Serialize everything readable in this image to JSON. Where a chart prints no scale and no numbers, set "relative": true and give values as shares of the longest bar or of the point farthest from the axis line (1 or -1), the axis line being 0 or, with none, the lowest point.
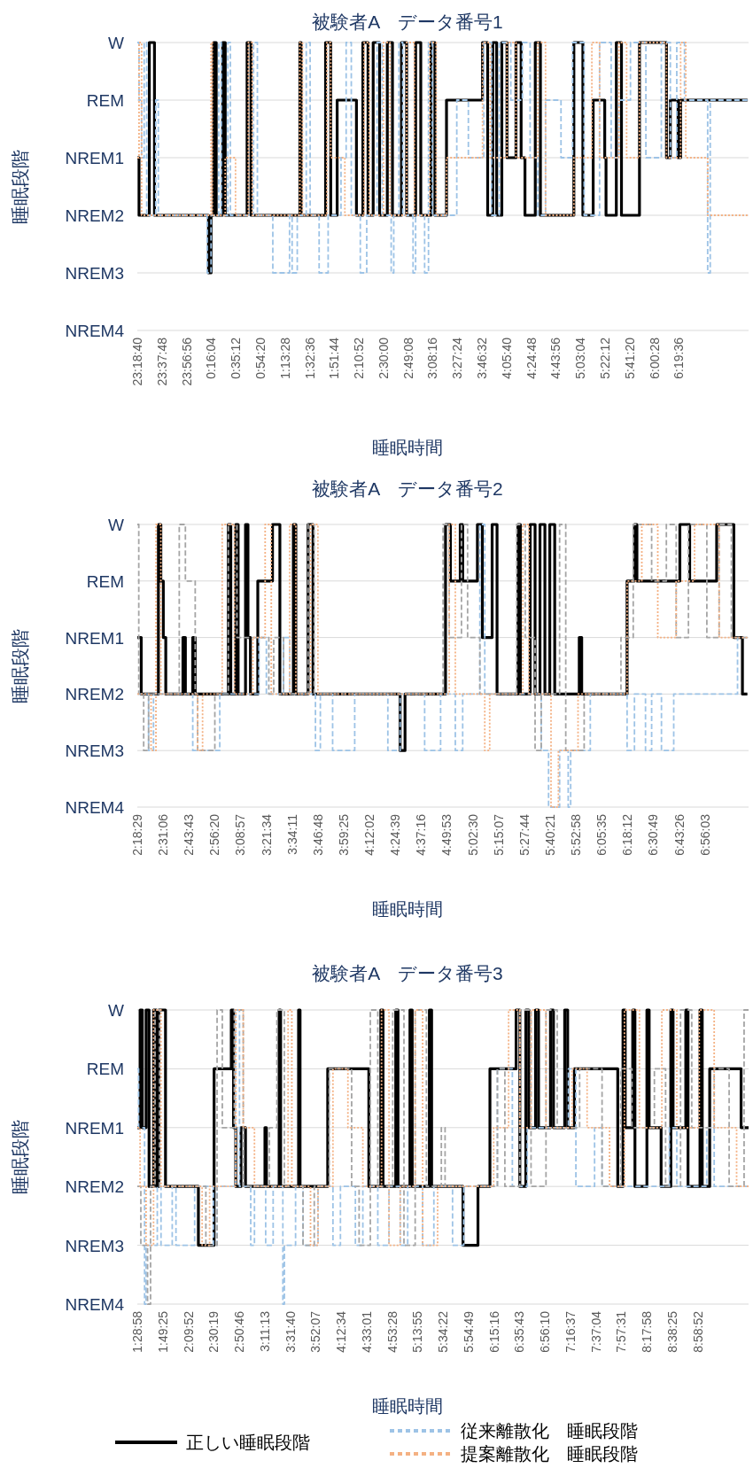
{
  "chart_data": [
    {
      "type": "step",
      "title": "被験者A　データ番号1",
      "xlabel": "睡眠時間",
      "ylabel": "睡眠段階",
      "grid": "y",
      "relative": true,
      "xlim": [
        "2000-01-01T23:18:40",
        "2000-01-02T07:13:48"
      ],
      "y_categories": [
        "W",
        "REM",
        "NREM1",
        "NREM2",
        "NREM3",
        "NREM4"
      ],
      "xticks": [
        {
          "value": "2000-01-01T23:18:40",
          "label": "23:18:40"
        },
        {
          "value": "2000-01-01T23:37:48",
          "label": "23:37:48"
        },
        {
          "value": "2000-01-01T23:56:56",
          "label": "23:56:56"
        },
        {
          "value": "2000-01-02T00:16:04",
          "label": "0:16:04"
        },
        {
          "value": "2000-01-02T00:35:12",
          "label": "0:35:12"
        },
        {
          "value": "2000-01-02T00:54:20",
          "label": "0:54:20"
        },
        {
          "value": "2000-01-02T01:13:28",
          "label": "1:13:28"
        },
        {
          "value": "2000-01-02T01:32:36",
          "label": "1:32:36"
        },
        {
          "value": "2000-01-02T01:51:44",
          "label": "1:51:44"
        },
        {
          "value": "2000-01-02T02:10:52",
          "label": "2:10:52"
        },
        {
          "value": "2000-01-02T02:30:00",
          "label": "2:30:00"
        },
        {
          "value": "2000-01-02T02:49:08",
          "label": "2:49:08"
        },
        {
          "value": "2000-01-02T03:08:16",
          "label": "3:08:16"
        },
        {
          "value": "2000-01-02T03:27:24",
          "label": "3:27:24"
        },
        {
          "value": "2000-01-02T03:46:32",
          "label": "3:46:32"
        },
        {
          "value": "2000-01-02T04:05:40",
          "label": "4:05:40"
        },
        {
          "value": "2000-01-02T04:24:48",
          "label": "4:24:48"
        },
        {
          "value": "2000-01-02T04:43:56",
          "label": "4:43:56"
        },
        {
          "value": "2000-01-02T05:03:04",
          "label": "5:03:04"
        },
        {
          "value": "2000-01-02T05:22:12",
          "label": "5:22:12"
        },
        {
          "value": "2000-01-02T05:41:20",
          "label": "5:41:20"
        },
        {
          "value": "2000-01-02T06:00:28",
          "label": "6:00:28"
        },
        {
          "value": "2000-01-02T06:19:36",
          "label": "6:19:36"
        }
      ],
      "series": [
        {
          "color": "#9dc3e6",
          "line_style": "dashed",
          "x": [
            "2000-01-01T23:18:40",
            "2000-01-01T23:20",
            "2000-01-01T23:22",
            "2000-01-01T23:24",
            "2000-01-01T23:26",
            "2000-01-01T23:33",
            "2000-01-01T23:35",
            "2000-01-02T00:13",
            "2000-01-02T00:16",
            "2000-01-02T00:22",
            "2000-01-02T00:24",
            "2000-01-02T00:29",
            "2000-01-02T00:31",
            "2000-01-02T00:49",
            "2000-01-02T00:52",
            "2000-01-02T01:04",
            "2000-01-02T01:17",
            "2000-01-02T01:19",
            "2000-01-02T01:23",
            "2000-01-02T01:30",
            "2000-01-02T01:33",
            "2000-01-02T01:40",
            "2000-01-02T01:47",
            "2000-01-02T01:57",
            "2000-01-02T02:01",
            "2000-01-02T02:05",
            "2000-01-02T02:12",
            "2000-01-02T02:17",
            "2000-01-02T02:25",
            "2000-01-02T02:29",
            "2000-01-02T02:36",
            "2000-01-02T02:38",
            "2000-01-02T02:42",
            "2000-01-02T02:45",
            "2000-01-02T02:53",
            "2000-01-02T02:55",
            "2000-01-02T03:02",
            "2000-01-02T03:05",
            "2000-01-02T03:08",
            "2000-01-02T03:27",
            "2000-01-02T03:36",
            "2000-01-02T03:48",
            "2000-01-02T03:54",
            "2000-01-02T04:00",
            "2000-01-02T04:09",
            "2000-01-02T04:18",
            "2000-01-02T04:24",
            "2000-01-02T04:30",
            "2000-01-02T04:36",
            "2000-01-02T04:48",
            "2000-01-02T04:57",
            "2000-01-02T05:06",
            "2000-01-02T05:18",
            "2000-01-02T05:27",
            "2000-01-02T05:33",
            "2000-01-02T05:42",
            "2000-01-02T05:54",
            "2000-01-02T06:06",
            "2000-01-02T06:13",
            "2000-01-02T06:18",
            "2000-01-02T06:24",
            "2000-01-02T06:42",
            "2000-01-02T06:44",
            "2000-01-02T07:13"
          ],
          "values": [
            1,
            0.8,
            0.6,
            1,
            0.4,
            0.8,
            0.4,
            0.2,
            0.4,
            1,
            0.4,
            1,
            0.4,
            1,
            0.4,
            0.2,
            0.4,
            0.2,
            0.4,
            1,
            0.4,
            0.2,
            0.4,
            0.6,
            1,
            0.4,
            0.2,
            0.4,
            1,
            0.4,
            0.2,
            0.4,
            1,
            0.4,
            0.2,
            0.4,
            0.2,
            1,
            0.4,
            0.8,
            0.6,
            1,
            0.4,
            1,
            0.8,
            1,
            0.6,
            0.4,
            0.8,
            0.6,
            1,
            0.4,
            1,
            0.6,
            0.8,
            1,
            0.6,
            1,
            0.6,
            1,
            0.8,
            0.2,
            0.8,
            0.8
          ]
        },
        {
          "color": "#f4b183",
          "line_style": "dotted",
          "x": [
            "2000-01-01T23:18:40",
            "2000-01-01T23:20",
            "2000-01-01T23:22",
            "2000-01-02T00:16",
            "2000-01-02T00:17",
            "2000-01-02T00:27",
            "2000-01-02T00:35",
            "2000-01-02T00:45",
            "2000-01-02T00:48",
            "2000-01-02T01:25",
            "2000-01-02T01:27",
            "2000-01-02T01:46",
            "2000-01-02T01:49",
            "2000-01-02T02:00",
            "2000-01-02T02:15",
            "2000-01-02T02:19",
            "2000-01-02T02:30",
            "2000-01-02T02:35",
            "2000-01-02T02:48",
            "2000-01-02T02:54",
            "2000-01-02T03:06",
            "2000-01-02T03:11",
            "2000-01-02T03:19",
            "2000-01-02T03:47",
            "2000-01-02T03:53",
            "2000-01-02T04:06",
            "2000-01-02T04:13",
            "2000-01-02T04:30",
            "2000-01-02T04:36",
            "2000-01-02T04:58",
            "2000-01-02T05:12",
            "2000-01-02T05:18",
            "2000-01-02T05:33",
            "2000-01-02T05:39",
            "2000-01-02T05:49",
            "2000-01-02T06:10",
            "2000-01-02T06:21",
            "2000-01-02T06:25",
            "2000-01-02T06:42",
            "2000-01-02T07:13"
          ],
          "values": [
            0.6,
            1,
            0.4,
            1,
            0.4,
            0.6,
            0.4,
            1,
            0.4,
            1,
            0.4,
            1,
            0.6,
            0.4,
            1,
            0.4,
            1,
            0.4,
            1,
            0.4,
            1,
            0.4,
            0.6,
            1,
            0.6,
            1,
            0.6,
            1,
            0.4,
            0.6,
            1,
            0.6,
            1,
            0.6,
            1,
            0.6,
            1,
            0.6,
            0.4,
            0.4
          ]
        },
        {
          "color": "#000000",
          "line_style": "solid",
          "x": [
            "2000-01-01T23:18:40",
            "2000-01-01T23:20",
            "2000-01-01T23:28",
            "2000-01-01T23:32",
            "2000-01-02T00:14",
            "2000-01-02T00:16",
            "2000-01-02T00:18",
            "2000-01-02T00:20",
            "2000-01-02T00:25",
            "2000-01-02T00:27",
            "2000-01-02T00:44",
            "2000-01-02T00:47",
            "2000-01-02T01:25",
            "2000-01-02T01:26",
            "2000-01-02T01:45",
            "2000-01-02T01:49",
            "2000-01-02T01:54",
            "2000-01-02T02:09",
            "2000-01-02T02:14",
            "2000-01-02T02:18",
            "2000-01-02T02:22",
            "2000-01-02T02:27",
            "2000-01-02T02:33",
            "2000-01-02T02:37",
            "2000-01-02T02:44",
            "2000-01-02T02:48",
            "2000-01-02T02:55",
            "2000-01-02T02:59",
            "2000-01-02T03:07",
            "2000-01-02T03:10",
            "2000-01-02T03:19",
            "2000-01-02T03:47",
            "2000-01-02T03:51",
            "2000-01-02T03:55",
            "2000-01-02T03:58",
            "2000-01-02T04:02",
            "2000-01-02T04:06",
            "2000-01-02T04:13",
            "2000-01-02T04:17",
            "2000-01-02T04:20",
            "2000-01-02T04:28",
            "2000-01-02T04:32",
            "2000-01-02T04:58",
            "2000-01-02T05:05",
            "2000-01-02T05:13",
            "2000-01-02T05:22",
            "2000-01-02T05:23",
            "2000-01-02T05:31",
            "2000-01-02T05:35",
            "2000-01-02T05:49",
            "2000-01-02T06:10",
            "2000-01-02T06:13",
            "2000-01-02T06:19",
            "2000-01-02T06:21",
            "2000-01-02T07:13"
          ],
          "values": [
            0.6,
            0.4,
            1,
            0.4,
            0.2,
            0.4,
            1,
            0.4,
            1,
            0.4,
            1,
            0.4,
            1,
            0.4,
            1,
            0.4,
            0.8,
            0.4,
            1,
            0.4,
            1,
            0.4,
            1,
            0.4,
            1,
            0.4,
            1,
            0.4,
            1,
            0.4,
            0.8,
            1,
            0.4,
            1,
            0.4,
            1,
            0.6,
            1,
            0.6,
            0.4,
            1,
            0.4,
            1,
            0.4,
            0.8,
            0.6,
            0.4,
            1,
            0.4,
            1,
            0.6,
            0.8,
            0.6,
            0.8,
            0.8
          ]
        }
      ]
    },
    {
      "type": "step",
      "title": "被験者A　データ番号2",
      "xlabel": "睡眠時間",
      "ylabel": "睡眠段階",
      "grid": "y",
      "relative": true,
      "xlim": [
        2.3081,
        7.29
      ],
      "y_categories": [
        "W",
        "REM",
        "NREM1",
        "NREM2",
        "NREM3",
        "NREM4"
      ],
      "xticks": [
        {
          "value": 2.3081,
          "label": "2:18:29"
        },
        {
          "value": 2.5183,
          "label": "2:31:06"
        },
        {
          "value": 2.7286,
          "label": "2:43:43"
        },
        {
          "value": 2.9389,
          "label": "2:56:20"
        },
        {
          "value": 3.1492,
          "label": "3:08:57"
        },
        {
          "value": 3.3594,
          "label": "3:21:34"
        },
        {
          "value": 3.5697,
          "label": "3:34:11"
        },
        {
          "value": 3.78,
          "label": "3:46:48"
        },
        {
          "value": 3.9903,
          "label": "3:59:25"
        },
        {
          "value": 4.2006,
          "label": "4:12:02"
        },
        {
          "value": 4.4108,
          "label": "4:24:39"
        },
        {
          "value": 4.6211,
          "label": "4:37:16"
        },
        {
          "value": 4.8314,
          "label": "4:49:53"
        },
        {
          "value": 5.0417,
          "label": "5:02:30"
        },
        {
          "value": 5.2519,
          "label": "5:15:07"
        },
        {
          "value": 5.4622,
          "label": "5:27:44"
        },
        {
          "value": 5.6725,
          "label": "5:40:21"
        },
        {
          "value": 5.8828,
          "label": "5:52:58"
        },
        {
          "value": 6.0931,
          "label": "6:05:35"
        },
        {
          "value": 6.3033,
          "label": "6:18:12"
        },
        {
          "value": 6.5136,
          "label": "6:30:49"
        },
        {
          "value": 6.7239,
          "label": "6:43:26"
        },
        {
          "value": 6.9342,
          "label": "6:56:03"
        }
      ],
      "series": [
        {
          "color": "#9dc3e6",
          "line_style": "dashed",
          "x": [
            2.3081,
            2.4,
            2.44,
            2.76,
            2.98,
            3.3,
            3.36,
            3.5,
            3.55,
            3.76,
            3.8,
            3.9,
            4.08,
            4.35,
            4.45,
            4.65,
            4.78,
            4.9,
            4.96,
            5.1,
            5.14,
            5.6,
            5.66,
            5.75,
            5.82,
            5.84,
            6.0,
            6.3,
            6.36,
            6.45,
            6.5,
            6.58,
            6.68,
            7.2,
            7.28
          ],
          "values": [
            0.4,
            0.2,
            0.4,
            0.2,
            0.4,
            0.6,
            0.4,
            0.6,
            0.4,
            0.2,
            0.4,
            0.2,
            0.4,
            0.2,
            0.4,
            0.2,
            0.4,
            0.2,
            0.4,
            1,
            0.4,
            0.2,
            0,
            0.2,
            0,
            0.2,
            0.4,
            0.2,
            0.4,
            0.2,
            0.4,
            0.2,
            0.4,
            0.6,
            0.6
          ]
        },
        {
          "color": "#f4b183",
          "line_style": "dotted",
          "x": [
            2.3081,
            2.42,
            2.46,
            2.5,
            2.8,
            2.84,
            3.0,
            3.1,
            3.25,
            3.35,
            3.4,
            3.55,
            3.6,
            3.72,
            3.78,
            4.85,
            4.9,
            5.14,
            5.18,
            5.45,
            5.5,
            5.68,
            5.74,
            5.9,
            6.3,
            6.42,
            6.55,
            6.7,
            6.85,
            7.05,
            7.28
          ],
          "values": [
            0.4,
            0.2,
            1,
            0.4,
            0.2,
            0.4,
            1,
            0.4,
            0.6,
            1,
            0.4,
            1,
            0.4,
            1,
            0.4,
            1,
            0.4,
            0.2,
            0.4,
            1,
            0.4,
            0,
            0.2,
            0.4,
            0.8,
            1,
            0.6,
            0.8,
            1,
            0.6,
            0.6
          ]
        },
        {
          "color": "#a5a5a5",
          "line_style": "dashed",
          "x": [
            2.3081,
            2.32,
            2.36,
            2.4,
            2.65,
            2.7,
            2.78,
            2.8,
            2.94,
            3.05,
            3.12,
            3.3,
            3.38,
            3.42,
            3.5,
            3.7,
            3.75,
            4.8,
            4.85,
            4.95,
            5.0,
            5.1,
            5.4,
            5.47,
            5.55,
            5.6,
            5.75,
            5.8,
            5.95,
            6.25,
            6.35,
            6.5,
            6.62,
            6.7,
            6.8,
            6.95,
            7.05,
            7.15,
            7.28
          ],
          "values": [
            1,
            0.4,
            0.2,
            0.4,
            1,
            0.8,
            0.4,
            0.2,
            0.4,
            1,
            0.6,
            0.6,
            0.4,
            0.6,
            0.4,
            1,
            0.4,
            1,
            0.6,
            1,
            0.6,
            0.4,
            1,
            0.6,
            0.2,
            0.4,
            1,
            0.2,
            0.4,
            0.6,
            1,
            0.8,
            1,
            0.6,
            1,
            0.6,
            1,
            0.6,
            0.6
          ]
        },
        {
          "color": "#000000",
          "line_style": "solid",
          "x": [
            2.3081,
            2.34,
            2.48,
            2.5,
            2.52,
            2.54,
            2.68,
            2.7,
            2.76,
            2.78,
            3.05,
            3.07,
            3.11,
            3.13,
            3.19,
            3.21,
            3.23,
            3.29,
            3.41,
            3.47,
            3.58,
            3.6,
            3.7,
            3.74,
            4.45,
            4.49,
            4.82,
            4.86,
            4.94,
            4.96,
            5.08,
            5.12,
            5.2,
            5.24,
            5.41,
            5.43,
            5.51,
            5.55,
            5.59,
            5.63,
            5.67,
            5.71,
            5.91,
            5.93,
            6.3,
            6.36,
            6.38,
            6.73,
            6.81,
            7.03,
            7.17,
            7.24,
            7.28
          ],
          "values": [
            0.6,
            0.4,
            1,
            0.8,
            0.6,
            0.4,
            0.6,
            0.4,
            0.6,
            0.4,
            1,
            0.4,
            1,
            0.4,
            1,
            0.6,
            0.4,
            0.8,
            1,
            0.4,
            1,
            0.4,
            1,
            0.4,
            0.2,
            0.4,
            1,
            0.8,
            1,
            0.8,
            1,
            0.6,
            1,
            0.4,
            1,
            0.4,
            1,
            0.4,
            1,
            0.4,
            1,
            0.4,
            0.6,
            0.4,
            0.8,
            1,
            0.8,
            1,
            0.8,
            1,
            0.6,
            0.4,
            0.4
          ]
        }
      ]
    },
    {
      "type": "step",
      "title": "被験者A　データ番号3",
      "xlabel": "睡眠時間",
      "ylabel": "睡眠段階",
      "grid": "y",
      "legend": "bottom",
      "relative": true,
      "xlim": [
        1.4828,
        9.66
      ],
      "y_categories": [
        "W",
        "REM",
        "NREM1",
        "NREM2",
        "NREM3",
        "NREM4"
      ],
      "xticks": [
        {
          "value": 1.4828,
          "label": "1:28:58"
        },
        {
          "value": 1.8236,
          "label": "1:49:25"
        },
        {
          "value": 2.1644,
          "label": "2:09:52"
        },
        {
          "value": 2.5053,
          "label": "2:30:19"
        },
        {
          "value": 2.8461,
          "label": "2:50:46"
        },
        {
          "value": 3.1869,
          "label": "3:11:13"
        },
        {
          "value": 3.5278,
          "label": "3:31:40"
        },
        {
          "value": 3.8686,
          "label": "3:52:07"
        },
        {
          "value": 4.2094,
          "label": "4:12:34"
        },
        {
          "value": 4.5503,
          "label": "4:33:01"
        },
        {
          "value": 4.8911,
          "label": "4:53:28"
        },
        {
          "value": 5.2319,
          "label": "5:13:55"
        },
        {
          "value": 5.5728,
          "label": "5:34:22"
        },
        {
          "value": 5.9136,
          "label": "5:54:49"
        },
        {
          "value": 6.2544,
          "label": "6:15:16"
        },
        {
          "value": 6.5953,
          "label": "6:35:43"
        },
        {
          "value": 6.9361,
          "label": "6:56:10"
        },
        {
          "value": 7.2769,
          "label": "7:16:37"
        },
        {
          "value": 7.6178,
          "label": "7:37:04"
        },
        {
          "value": 7.9586,
          "label": "7:57:31"
        },
        {
          "value": 8.2994,
          "label": "8:17:58"
        },
        {
          "value": 8.6403,
          "label": "8:38:25"
        },
        {
          "value": 8.9811,
          "label": "8:58:52"
        }
      ],
      "series": [
        {
          "name": "従来離散化　睡眠段階",
          "color": "#9dc3e6",
          "line_style": "dashed",
          "x": [
            1.4828,
            1.5,
            1.58,
            1.6,
            1.75,
            1.8,
            1.95,
            2.0,
            2.25,
            2.5,
            2.55,
            2.8,
            2.85,
            3.0,
            3.05,
            3.2,
            3.3,
            3.43,
            3.45,
            3.6,
            3.7,
            3.9,
            4.1,
            4.2,
            4.4,
            4.5,
            4.7,
            4.85,
            5.0,
            5.1,
            5.3,
            5.45,
            5.7,
            5.85,
            6.3,
            6.5,
            6.7,
            7.25,
            7.35,
            7.6,
            7.7,
            8.6,
            8.7,
            9.1,
            9.2,
            9.66
          ],
          "values": [
            0.8,
            0.6,
            0,
            0.2,
            0.4,
            0.2,
            0.4,
            0.2,
            0.4,
            0.2,
            0.4,
            1,
            0.4,
            0.2,
            0.4,
            0.2,
            0.4,
            0,
            0.2,
            0.4,
            0.2,
            0.4,
            0.2,
            0.4,
            0.2,
            0.4,
            0.2,
            0.4,
            0.2,
            0.4,
            0.2,
            0.4,
            0.2,
            0.4,
            0.8,
            0.4,
            0.6,
            0.8,
            0.4,
            0.6,
            0.4,
            0.6,
            0.4,
            0.6,
            0.4,
            0.4
          ]
        },
        {
          "name": "提案離散化　睡眠段階",
          "color": "#f4b183",
          "line_style": "dotted",
          "x": [
            1.4828,
            1.52,
            1.6,
            1.7,
            1.8,
            2.35,
            2.45,
            2.8,
            2.9,
            3.05,
            3.5,
            3.55,
            3.8,
            3.9,
            4.1,
            4.3,
            4.5,
            4.75,
            4.85,
            5.0,
            5.2,
            5.3,
            5.5,
            6.25,
            6.45,
            6.6,
            6.75,
            6.95,
            7.3,
            7.5,
            7.8,
            8.0,
            8.2,
            8.5,
            8.7,
            9.0,
            9.2,
            9.5,
            9.66
          ],
          "values": [
            0.6,
            0.4,
            0.2,
            1,
            0.4,
            0.2,
            0.4,
            1,
            0.6,
            0.4,
            1,
            0.4,
            0.2,
            0.4,
            0.8,
            0.6,
            0.4,
            1,
            0.2,
            0.4,
            1,
            0.2,
            0.4,
            0.6,
            1,
            0.6,
            1,
            0.6,
            0.8,
            0.6,
            0.4,
            1,
            0.6,
            1,
            0.6,
            1,
            0.6,
            0.4,
            0.4
          ]
        },
        {
          "color": "#a5a5a5",
          "line_style": "dashed",
          "x": [
            1.4828,
            1.53,
            1.62,
            1.66,
            1.72,
            1.78,
            2.4,
            2.55,
            2.62,
            2.78,
            2.9,
            3.25,
            3.35,
            3.45,
            3.7,
            3.85,
            4.05,
            4.35,
            4.45,
            4.6,
            4.7,
            4.9,
            5.05,
            5.2,
            5.35,
            5.55,
            5.6,
            6.3,
            6.4,
            6.6,
            6.75,
            6.95,
            7.1,
            7.4,
            7.7,
            7.95,
            8.1,
            8.4,
            8.55,
            8.75,
            8.9,
            9.2,
            9.4,
            9.6,
            9.66
          ],
          "values": [
            0.4,
            0.2,
            0,
            0.4,
            1,
            0.4,
            0.2,
            1,
            0.6,
            1,
            0.4,
            0.6,
            1,
            0.4,
            0.2,
            0.4,
            0.8,
            0.4,
            0.2,
            1,
            0.4,
            1,
            0.2,
            1,
            0.4,
            0.6,
            0.4,
            0.8,
            0.4,
            1,
            0.4,
            1,
            0.6,
            0.8,
            0.4,
            0.8,
            0.6,
            0.8,
            0.4,
            1,
            0.6,
            0.8,
            0.4,
            1,
            1
          ]
        },
        {
          "name": "正しい睡眠段階",
          "color": "#000000",
          "line_style": "solid",
          "x": [
            1.4828,
            1.52,
            1.55,
            1.6,
            1.64,
            1.7,
            1.74,
            1.77,
            1.86,
            2.3,
            2.51,
            2.74,
            2.77,
            2.8,
            2.87,
            2.93,
            3.19,
            3.21,
            3.38,
            3.4,
            3.64,
            3.66,
            4.03,
            4.58,
            4.74,
            4.77,
            4.94,
            4.97,
            5.13,
            5.16,
            5.39,
            5.42,
            5.84,
            6.04,
            6.2,
            6.55,
            6.6,
            6.68,
            6.72,
            6.81,
            6.85,
            7.01,
            7.05,
            7.2,
            7.24,
            7.33,
            7.91,
            7.98,
            8.01,
            8.11,
            8.14,
            8.3,
            8.33,
            8.49,
            8.62,
            8.65,
            8.82,
            8.85,
            9.01,
            9.04,
            9.14,
            9.56,
            9.66
          ],
          "values": [
            0.6,
            1,
            0.6,
            1,
            0.4,
            1,
            0.4,
            1,
            0.4,
            0.2,
            0.8,
            1,
            0.6,
            0.4,
            0.6,
            0.4,
            0.6,
            0.4,
            1,
            0.4,
            1,
            0.4,
            0.8,
            0.4,
            1,
            0.4,
            1,
            0.4,
            1,
            0.4,
            1,
            0.4,
            0.2,
            0.4,
            0.8,
            1,
            0.4,
            1,
            0.6,
            1,
            0.6,
            1,
            0.6,
            1,
            0.6,
            0.8,
            0.4,
            1,
            0.6,
            1,
            0.4,
            1,
            0.6,
            0.4,
            1,
            0.6,
            1,
            0.4,
            1,
            0.4,
            0.8,
            0.6,
            0.6
          ]
        }
      ]
    }
  ]
}
